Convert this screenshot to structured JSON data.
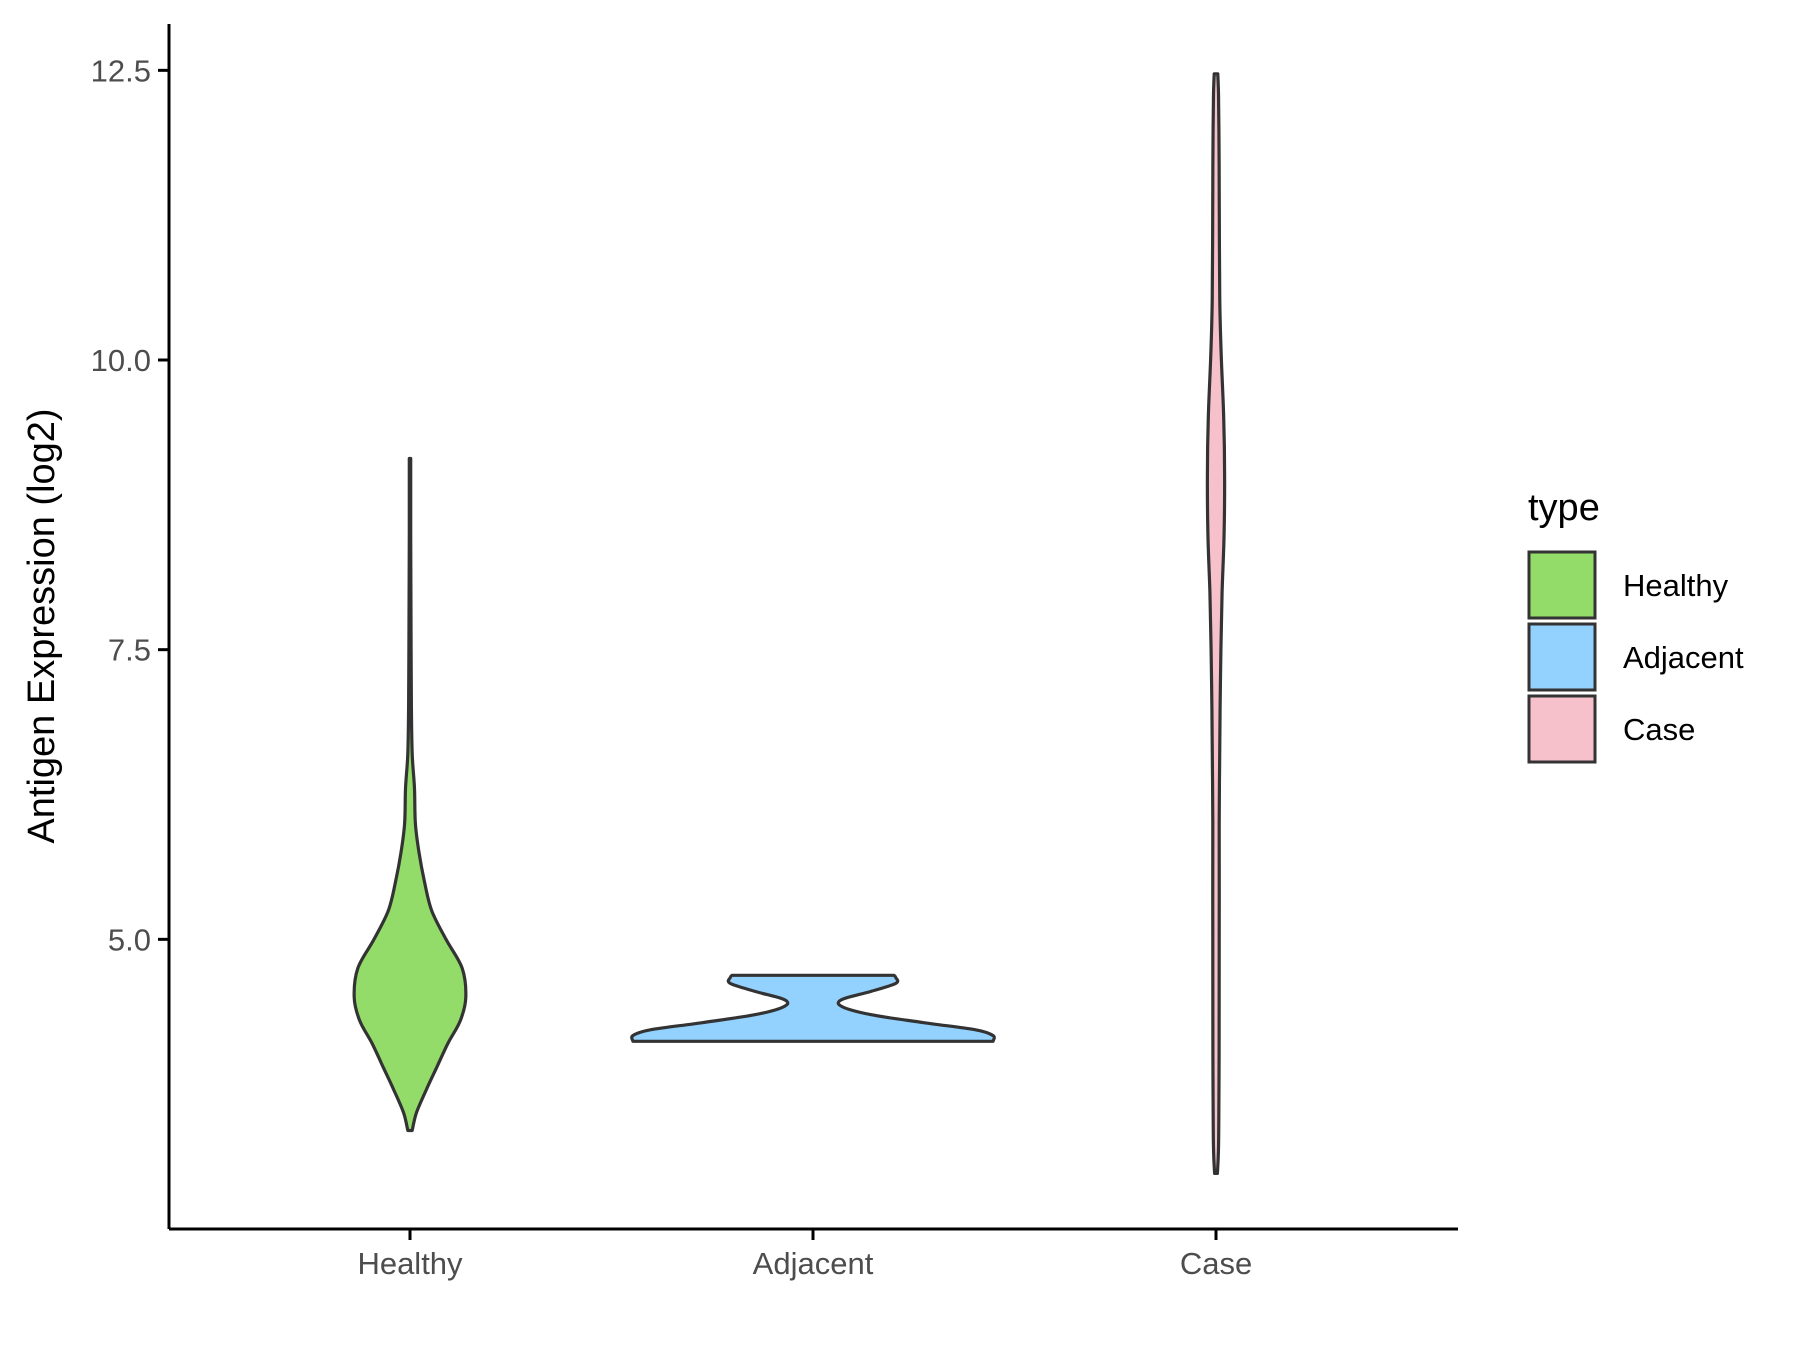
{
  "chart_data": {
    "type": "violin",
    "title": "",
    "xlabel": "",
    "ylabel": "Antigen Expression (log2)",
    "ylim": [
      2.5,
      12.9
    ],
    "y_ticks": [
      5.0,
      7.5,
      10.0,
      12.5
    ],
    "y_tick_labels": [
      "5.0",
      "7.5",
      "10.0",
      "12.5"
    ],
    "categories": [
      "Healthy",
      "Adjacent",
      "Case"
    ],
    "grid": false,
    "legend": {
      "title": "type",
      "position": "right",
      "entries": [
        "Healthy",
        "Adjacent",
        "Case"
      ]
    },
    "colors": {
      "Healthy": "#93dc6a",
      "Adjacent": "#93d1ff",
      "Case": "#f7c1cc",
      "outline": "#333333",
      "axis": "#000000"
    },
    "series": [
      {
        "name": "Healthy",
        "min": 3.35,
        "max": 9.15,
        "density": [
          [
            3.35,
            0.012
          ],
          [
            3.5,
            0.035
          ],
          [
            3.7,
            0.09
          ],
          [
            3.9,
            0.15
          ],
          [
            4.1,
            0.21
          ],
          [
            4.3,
            0.28
          ],
          [
            4.5,
            0.31
          ],
          [
            4.75,
            0.29
          ],
          [
            5.0,
            0.2
          ],
          [
            5.25,
            0.12
          ],
          [
            5.5,
            0.08
          ],
          [
            5.75,
            0.05
          ],
          [
            6.0,
            0.03
          ],
          [
            6.3,
            0.025
          ],
          [
            6.6,
            0.012
          ],
          [
            7.0,
            0.008
          ],
          [
            7.5,
            0.006
          ],
          [
            8.0,
            0.005
          ],
          [
            8.5,
            0.004
          ],
          [
            9.0,
            0.004
          ],
          [
            9.15,
            0.004
          ]
        ]
      },
      {
        "name": "Adjacent",
        "min": 4.12,
        "max": 4.69,
        "density": [
          [
            4.12,
            1.0
          ],
          [
            4.17,
            1.0
          ],
          [
            4.22,
            0.9
          ],
          [
            4.28,
            0.62
          ],
          [
            4.35,
            0.32
          ],
          [
            4.42,
            0.16
          ],
          [
            4.48,
            0.16
          ],
          [
            4.55,
            0.32
          ],
          [
            4.62,
            0.46
          ],
          [
            4.67,
            0.46
          ],
          [
            4.69,
            0.45
          ]
        ]
      },
      {
        "name": "Case",
        "min": 2.98,
        "max": 12.47,
        "density": [
          [
            2.98,
            0.008
          ],
          [
            3.2,
            0.014
          ],
          [
            3.6,
            0.016
          ],
          [
            4.0,
            0.017
          ],
          [
            5.0,
            0.018
          ],
          [
            6.0,
            0.018
          ],
          [
            6.5,
            0.02
          ],
          [
            7.0,
            0.023
          ],
          [
            7.5,
            0.027
          ],
          [
            8.0,
            0.034
          ],
          [
            8.5,
            0.045
          ],
          [
            9.0,
            0.048
          ],
          [
            9.5,
            0.043
          ],
          [
            10.0,
            0.03
          ],
          [
            10.5,
            0.021
          ],
          [
            11.0,
            0.019
          ],
          [
            11.5,
            0.018
          ],
          [
            12.0,
            0.016
          ],
          [
            12.3,
            0.014
          ],
          [
            12.47,
            0.01
          ]
        ]
      }
    ]
  }
}
